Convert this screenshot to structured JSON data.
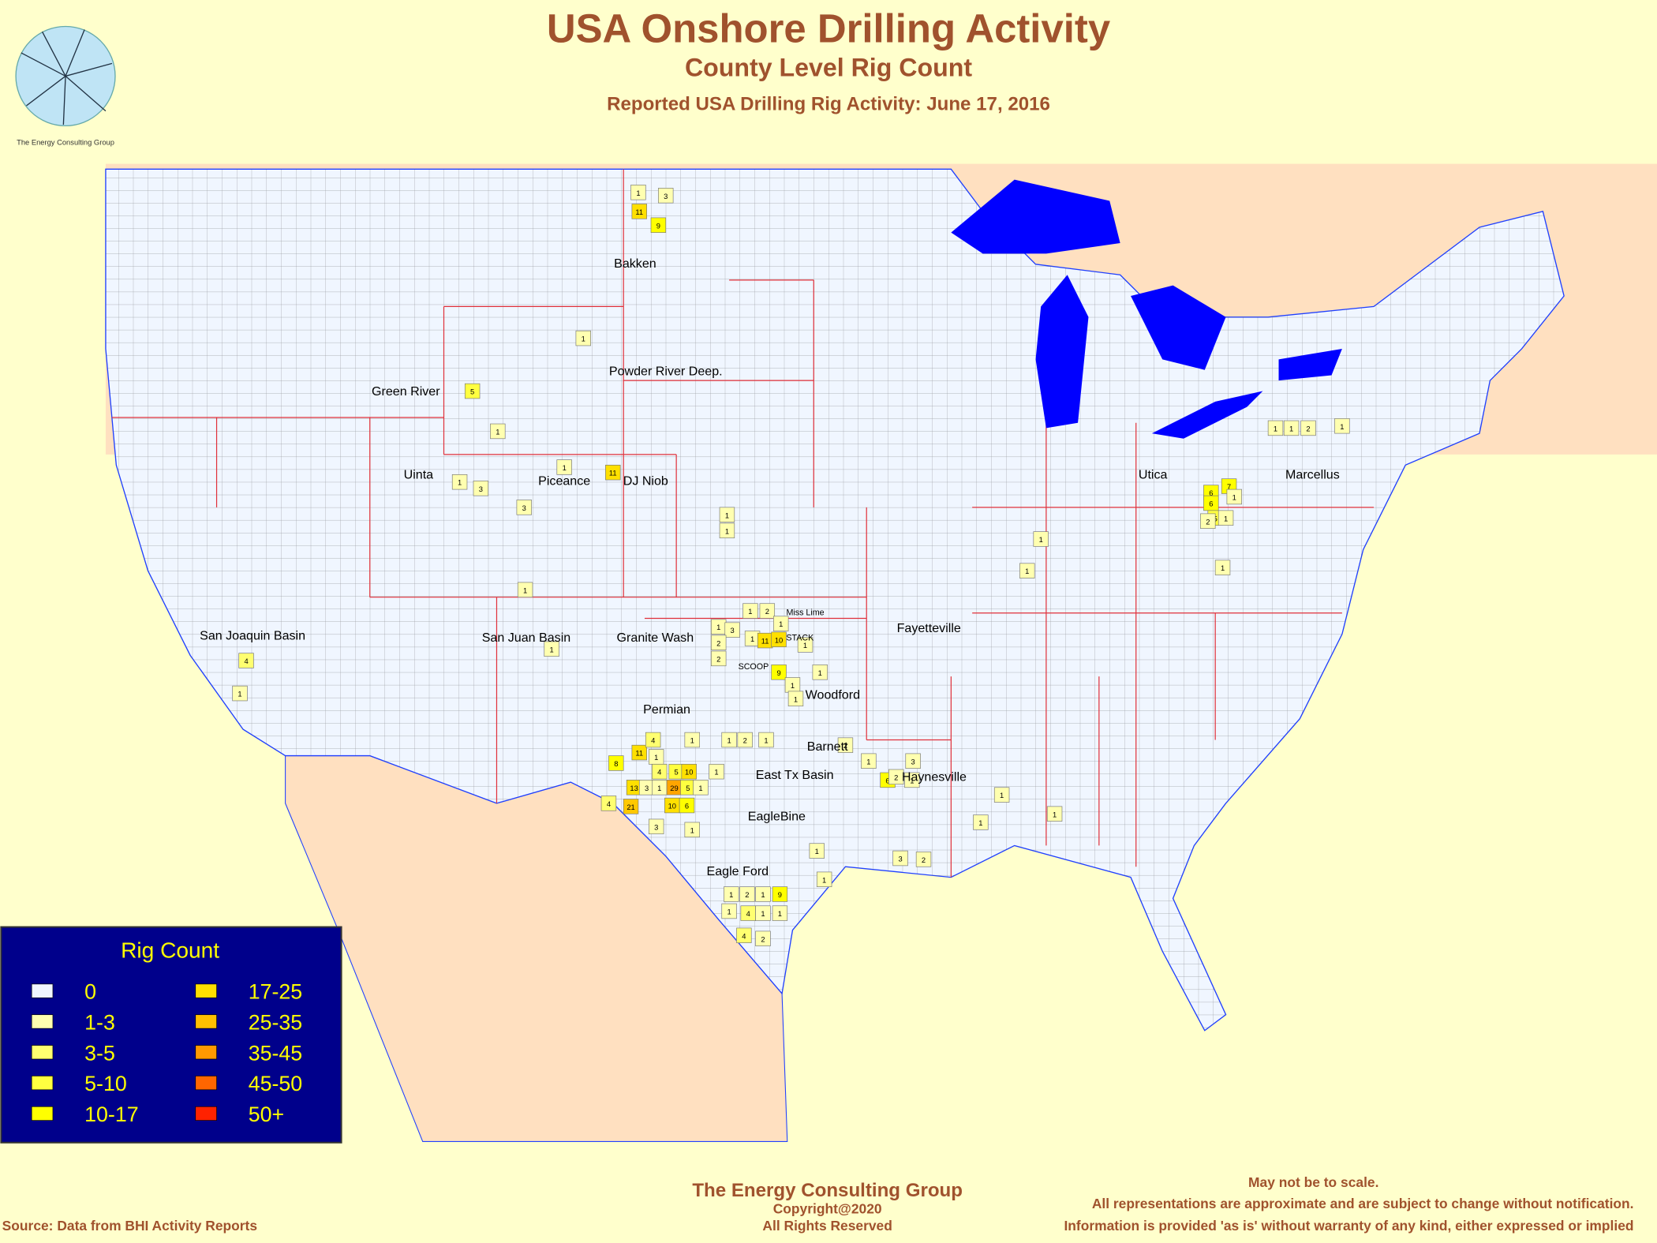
{
  "header": {
    "title": "USA Onshore Drilling Activity",
    "subtitle": "County Level Rig Count",
    "date_line": "Reported USA Drilling Rig Activity: June 17, 2016",
    "logo_caption": "The Energy Consulting Group"
  },
  "basins": [
    "Bakken",
    "Powder River Deep.",
    "Green River",
    "Uinta",
    "Piceance",
    "DJ Niob",
    "San Joaquin Basin",
    "San Juan Basin",
    "Granite Wash",
    "Miss Lime",
    "STACK",
    "SCOOP",
    "Woodford",
    "Permian",
    "Barnett",
    "East Tx Basin",
    "Haynesville",
    "EagleBine",
    "Eagle Ford",
    "Fayetteville",
    "Utica",
    "Marcellus"
  ],
  "counties": [
    {
      "count": 11,
      "color": "#FFE000"
    },
    {
      "count": 9,
      "color": "#FFFF00"
    },
    {
      "count": 3,
      "color": "#FFFFB0"
    },
    {
      "count": 1,
      "color": "#FFFFB0"
    },
    {
      "count": 1,
      "color": "#FFFFB0"
    },
    {
      "count": 5,
      "color": "#FFFF40"
    },
    {
      "count": 1,
      "color": "#FFFFB0"
    },
    {
      "count": 1,
      "color": "#FFFFB0"
    },
    {
      "count": 3,
      "color": "#FFFFB0"
    },
    {
      "count": 3,
      "color": "#FFFFB0"
    },
    {
      "count": 1,
      "color": "#FFFFB0"
    },
    {
      "count": 11,
      "color": "#FFE000"
    },
    {
      "count": 1,
      "color": "#FFFFB0"
    },
    {
      "count": 1,
      "color": "#FFFFB0"
    },
    {
      "count": 1,
      "color": "#FFFFB0"
    },
    {
      "count": 4,
      "color": "#FFFF70"
    },
    {
      "count": 1,
      "color": "#FFFFB0"
    },
    {
      "count": 1,
      "color": "#FFFFB0"
    },
    {
      "count": 1,
      "color": "#FFFFB0"
    },
    {
      "count": 3,
      "color": "#FFFFB0"
    },
    {
      "count": 1,
      "color": "#FFFFB0"
    },
    {
      "count": 2,
      "color": "#FFFFB0"
    },
    {
      "count": 1,
      "color": "#FFFFB0"
    },
    {
      "count": 11,
      "color": "#FFE000"
    },
    {
      "count": 10,
      "color": "#FFE000"
    },
    {
      "count": 2,
      "color": "#FFFFB0"
    },
    {
      "count": 2,
      "color": "#FFFFB0"
    },
    {
      "count": 1,
      "color": "#FFFFB0"
    },
    {
      "count": 9,
      "color": "#FFFF00"
    },
    {
      "count": 1,
      "color": "#FFFFB0"
    },
    {
      "count": 1,
      "color": "#FFFFB0"
    },
    {
      "count": 1,
      "color": "#FFFFB0"
    },
    {
      "count": 1,
      "color": "#FFFFB0"
    },
    {
      "count": 8,
      "color": "#FFFF00"
    },
    {
      "count": 11,
      "color": "#FFE000"
    },
    {
      "count": 4,
      "color": "#FFFF70"
    },
    {
      "count": 1,
      "color": "#FFFFB0"
    },
    {
      "count": 1,
      "color": "#FFFFB0"
    },
    {
      "count": 2,
      "color": "#FFFFB0"
    },
    {
      "count": 1,
      "color": "#FFFFB0"
    },
    {
      "count": 1,
      "color": "#FFFFB0"
    },
    {
      "count": 4,
      "color": "#FFFF70"
    },
    {
      "count": 5,
      "color": "#FFFF40"
    },
    {
      "count": 10,
      "color": "#FFE000"
    },
    {
      "count": 13,
      "color": "#FFE000"
    },
    {
      "count": 3,
      "color": "#FFFFB0"
    },
    {
      "count": 1,
      "color": "#FFFFB0"
    },
    {
      "count": 29,
      "color": "#FFA500"
    },
    {
      "count": 5,
      "color": "#FFFF40"
    },
    {
      "count": 1,
      "color": "#FFFFB0"
    },
    {
      "count": 4,
      "color": "#FFFF70"
    },
    {
      "count": 21,
      "color": "#FFC800"
    },
    {
      "count": 10,
      "color": "#FFE000"
    },
    {
      "count": 6,
      "color": "#FFFF00"
    },
    {
      "count": 3,
      "color": "#FFFFB0"
    },
    {
      "count": 1,
      "color": "#FFFFB0"
    },
    {
      "count": 1,
      "color": "#FFFFB0"
    },
    {
      "count": 2,
      "color": "#FFFFB0"
    },
    {
      "count": 1,
      "color": "#FFFFB0"
    },
    {
      "count": 6,
      "color": "#FFFF00"
    },
    {
      "count": 2,
      "color": "#FFFFB0"
    },
    {
      "count": 3,
      "color": "#FFFFB0"
    },
    {
      "count": 1,
      "color": "#FFFFB0"
    },
    {
      "count": 1,
      "color": "#FFFFB0"
    },
    {
      "count": 2,
      "color": "#FFFFB0"
    },
    {
      "count": 1,
      "color": "#FFFFB0"
    },
    {
      "count": 9,
      "color": "#FFFF00"
    },
    {
      "count": 1,
      "color": "#FFFFB0"
    },
    {
      "count": 4,
      "color": "#FFFF70"
    },
    {
      "count": 1,
      "color": "#FFFFB0"
    },
    {
      "count": 1,
      "color": "#FFFFB0"
    },
    {
      "count": 4,
      "color": "#FFFF70"
    },
    {
      "count": 2,
      "color": "#FFFFB0"
    },
    {
      "count": 3,
      "color": "#FFFFB0"
    },
    {
      "count": 2,
      "color": "#FFFFB0"
    },
    {
      "count": 6,
      "color": "#FFFF00"
    },
    {
      "count": 7,
      "color": "#FFFF00"
    },
    {
      "count": 6,
      "color": "#FFFF00"
    },
    {
      "count": 1,
      "color": "#FFFFB0"
    },
    {
      "count": 5,
      "color": "#FFFF40"
    },
    {
      "count": 2,
      "color": "#FFFFB0"
    },
    {
      "count": 1,
      "color": "#FFFFB0"
    },
    {
      "count": 1,
      "color": "#FFFFB0"
    },
    {
      "count": 1,
      "color": "#FFFFB0"
    },
    {
      "count": 1,
      "color": "#FFFFB0"
    },
    {
      "count": 2,
      "color": "#FFFFB0"
    },
    {
      "count": 1,
      "color": "#FFFFB0"
    },
    {
      "count": 1,
      "color": "#FFFFB0"
    },
    {
      "count": 1,
      "color": "#FFFFB0"
    },
    {
      "count": 1,
      "color": "#FFFFB0"
    },
    {
      "count": 1,
      "color": "#FFFFB0"
    },
    {
      "count": 1,
      "color": "#FFFFB0"
    },
    {
      "count": 1,
      "color": "#FFFFB0"
    },
    {
      "count": 1,
      "color": "#FFFFB0"
    }
  ],
  "legend": {
    "title": "Rig Count",
    "entries": [
      {
        "label": "0",
        "color": "#F0F6FF"
      },
      {
        "label": "1-3",
        "color": "#FFFFB0"
      },
      {
        "label": "3-5",
        "color": "#FFFF70"
      },
      {
        "label": "5-10",
        "color": "#FFFF40"
      },
      {
        "label": "10-17",
        "color": "#FFFF00"
      },
      {
        "label": "17-25",
        "color": "#FFE000"
      },
      {
        "label": "25-35",
        "color": "#FFC000"
      },
      {
        "label": "35-45",
        "color": "#FF9900"
      },
      {
        "label": "45-50",
        "color": "#FF6600"
      },
      {
        "label": "50+",
        "color": "#FF2200"
      }
    ]
  },
  "footer": {
    "company": "The Energy Consulting Group",
    "copyright": "Copyright@2020",
    "rights": "All Rights Reserved",
    "source": "Source: Data from BHI Activity Reports",
    "scale_note": "May not be to scale.",
    "disclaimer_1": "All representations are approximate and are subject to change without notification.",
    "disclaimer_2": "Information is provided 'as is' without warranty of any kind, either expressed or implied"
  }
}
